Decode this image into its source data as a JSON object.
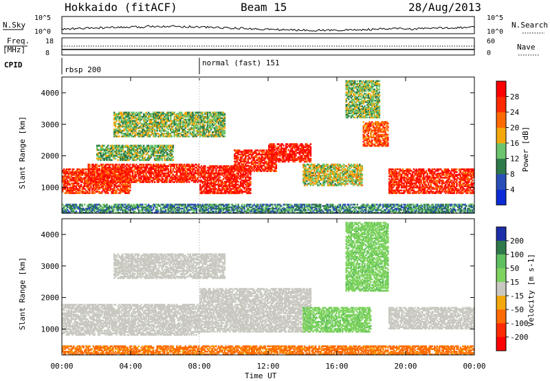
{
  "header": {
    "left": "Hokkaido (fitACF)",
    "center": "Beam 15",
    "right": "28/Aug/2013"
  },
  "nsky_panel": {
    "left_label": "N.Sky",
    "right_label": "N.Search",
    "left_ticks": [
      "10^5",
      "10^0"
    ],
    "right_ticks": [
      "10^5",
      "10^0"
    ]
  },
  "freq_panel": {
    "left_label_top": "Freq.",
    "left_label_bottom": "[MHz]",
    "right_label": "Nave",
    "left_ticks": [
      "18",
      "8"
    ],
    "right_ticks": [
      "60",
      "0"
    ]
  },
  "cpid_panel": {
    "label": "CPID",
    "modes": [
      {
        "name": "rbsp 200",
        "start_hour": 0
      },
      {
        "name": "normal (fast) 151",
        "start_hour": 8
      }
    ]
  },
  "chart_data": [
    {
      "type": "heatmap",
      "name": "power",
      "ylabel": "Slant Range [km]",
      "ylim": [
        180,
        4500
      ],
      "yticks": [
        "1000",
        "2000",
        "3000",
        "4000"
      ],
      "xlim": [
        0,
        24
      ],
      "colorbar": {
        "label": "Power [dB]",
        "ticks": [
          "4",
          "8",
          "12",
          "16",
          "20",
          "24",
          "28"
        ],
        "colors": [
          "#0a2bd6",
          "#2a4eb8",
          "#2f7a4a",
          "#6cc46c",
          "#f4a80c",
          "#ff6a00",
          "#ff2a00",
          "#ff0000"
        ]
      },
      "bands": [
        {
          "t0": 0.0,
          "t1": 24.0,
          "r0": 180,
          "r1": 480,
          "value": 10
        },
        {
          "t0": 0.0,
          "t1": 4.0,
          "r0": 800,
          "r1": 1600,
          "value": 26
        },
        {
          "t0": 1.5,
          "t1": 8.0,
          "r0": 1150,
          "r1": 1750,
          "value": 27
        },
        {
          "t0": 2.0,
          "t1": 6.5,
          "r0": 1850,
          "r1": 2350,
          "value": 13
        },
        {
          "t0": 8.0,
          "t1": 11.0,
          "r0": 800,
          "r1": 1700,
          "value": 28
        },
        {
          "t0": 10.0,
          "t1": 12.5,
          "r0": 1500,
          "r1": 2200,
          "value": 27
        },
        {
          "t0": 12.0,
          "t1": 14.5,
          "r0": 1800,
          "r1": 2400,
          "value": 28
        },
        {
          "t0": 14.0,
          "t1": 17.5,
          "r0": 1050,
          "r1": 1750,
          "value": 16
        },
        {
          "t0": 17.5,
          "t1": 19.0,
          "r0": 2300,
          "r1": 3100,
          "value": 24
        },
        {
          "t0": 19.0,
          "t1": 24.0,
          "r0": 800,
          "r1": 1600,
          "value": 27
        },
        {
          "t0": 16.5,
          "t1": 18.5,
          "r0": 3200,
          "r1": 4400,
          "value": 14
        },
        {
          "t0": 3.0,
          "t1": 9.5,
          "r0": 2600,
          "r1": 3400,
          "value": 14
        }
      ]
    },
    {
      "type": "heatmap",
      "name": "velocity",
      "ylabel": "Slant Range [km]",
      "ylim": [
        180,
        4500
      ],
      "yticks": [
        "1000",
        "2000",
        "3000",
        "4000"
      ],
      "xlim": [
        0,
        24
      ],
      "xticks": [
        "00:00",
        "04:00",
        "08:00",
        "12:00",
        "16:00",
        "20:00",
        "00:00"
      ],
      "xlabel": "Time UT",
      "colorbar": {
        "label": "Velocity [m s-1]",
        "ticks": [
          "200",
          "100",
          "50",
          "15",
          "-15",
          "-50",
          "-100",
          "-200"
        ],
        "colors": [
          "#1c2ea8",
          "#2f7a4a",
          "#5fbf5f",
          "#7ed35f",
          "#c9c9c1",
          "#f4a80c",
          "#ff6a00",
          "#ff2a00",
          "#ff0000"
        ]
      },
      "bands": [
        {
          "t0": 0.0,
          "t1": 24.0,
          "r0": 180,
          "r1": 480,
          "value": -60
        },
        {
          "t0": 0.0,
          "t1": 8.0,
          "r0": 800,
          "r1": 1800,
          "value": 0
        },
        {
          "t0": 8.0,
          "t1": 14.5,
          "r0": 900,
          "r1": 2300,
          "value": 0
        },
        {
          "t0": 14.0,
          "t1": 18.0,
          "r0": 900,
          "r1": 1700,
          "value": 40
        },
        {
          "t0": 16.5,
          "t1": 19.0,
          "r0": 2200,
          "r1": 4400,
          "value": 40
        },
        {
          "t0": 19.0,
          "t1": 24.0,
          "r0": 1000,
          "r1": 1700,
          "value": 0
        },
        {
          "t0": 3.0,
          "t1": 9.5,
          "r0": 2600,
          "r1": 3400,
          "value": 0
        }
      ]
    }
  ]
}
